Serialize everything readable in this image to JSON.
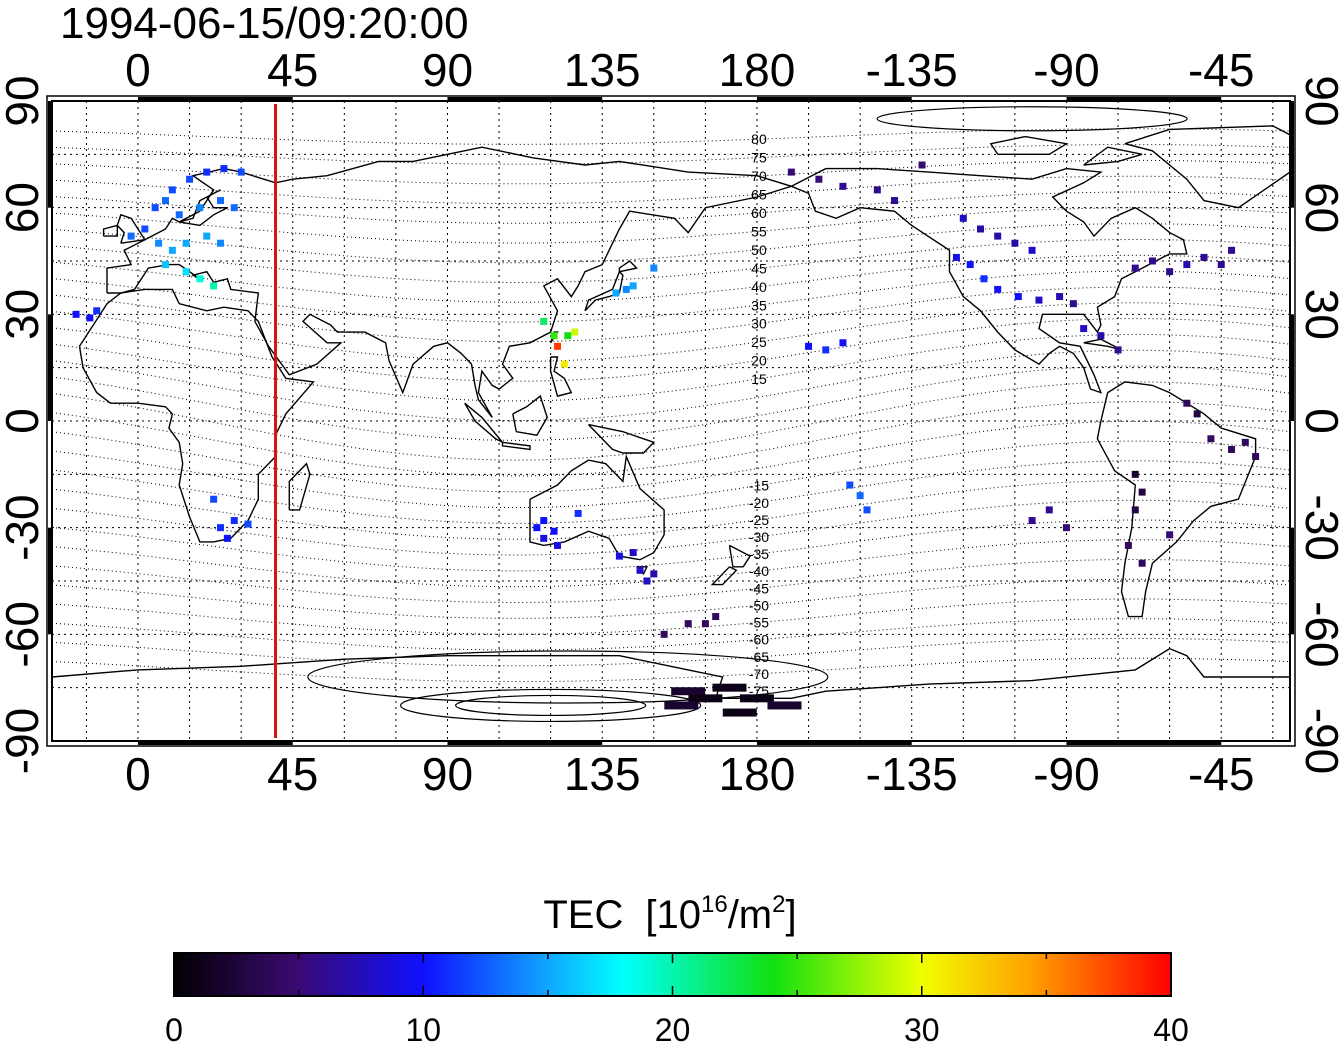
{
  "title": "1994-06-15/09:20:00",
  "top_lon_labels": [
    "0",
    "45",
    "90",
    "135",
    "180",
    "-135",
    "-90",
    "-45"
  ],
  "bottom_lon_labels": [
    "0",
    "45",
    "90",
    "135",
    "180",
    "-135",
    "-90",
    "-45"
  ],
  "left_lat_labels": [
    "90",
    "60",
    "30",
    "0",
    "-30",
    "-60",
    "-90"
  ],
  "right_lat_labels": [
    "90",
    "60",
    "30",
    "0",
    "-30",
    "-60",
    "-90"
  ],
  "contour_labels_north": [
    "80",
    "75",
    "70",
    "65",
    "60",
    "55",
    "50",
    "45",
    "40",
    "35",
    "30",
    "25",
    "20",
    "15"
  ],
  "contour_labels_south": [
    "-15",
    "-20",
    "-25",
    "-30",
    "-35",
    "-40",
    "-45",
    "-50",
    "-55",
    "-60",
    "-65",
    "-70",
    "-75"
  ],
  "colorbar": {
    "title": "TEC",
    "unit_base": "[10",
    "unit_exp": "16",
    "unit_mid": "/m",
    "unit_exp2": "2",
    "unit_end": "]",
    "tick_labels": [
      "0",
      "10",
      "20",
      "30",
      "40"
    ],
    "range": [
      0,
      40
    ]
  },
  "terminator_color": "#dd1010",
  "chart_data": {
    "type": "scatter",
    "title": "1994-06-15/09:20:00",
    "xlabel": "",
    "ylabel": "",
    "xlim": [
      -25,
      335
    ],
    "ylim": [
      -90,
      90
    ],
    "grid": true,
    "color_scale": "TEC",
    "color_range": [
      0,
      40
    ],
    "terminator_longitude": 40,
    "points": [
      [
        -18,
        30,
        10
      ],
      [
        -14,
        29,
        10
      ],
      [
        -12,
        31,
        11
      ],
      [
        -2,
        52,
        13
      ],
      [
        2,
        54,
        12
      ],
      [
        5,
        60,
        12
      ],
      [
        8,
        62,
        13
      ],
      [
        10,
        65,
        12
      ],
      [
        15,
        68,
        12
      ],
      [
        20,
        70,
        11
      ],
      [
        25,
        71,
        11
      ],
      [
        30,
        70,
        12
      ],
      [
        12,
        58,
        13
      ],
      [
        18,
        60,
        14
      ],
      [
        24,
        62,
        13
      ],
      [
        28,
        60,
        13
      ],
      [
        6,
        50,
        14
      ],
      [
        10,
        48,
        15
      ],
      [
        14,
        50,
        15
      ],
      [
        20,
        52,
        15
      ],
      [
        24,
        50,
        14
      ],
      [
        8,
        44,
        16
      ],
      [
        14,
        42,
        17
      ],
      [
        18,
        40,
        19
      ],
      [
        22,
        38,
        20
      ],
      [
        24,
        -30,
        11
      ],
      [
        26,
        -33,
        10
      ],
      [
        28,
        -28,
        11
      ],
      [
        32,
        -29,
        12
      ],
      [
        22,
        -22,
        12
      ],
      [
        116,
        -30,
        10
      ],
      [
        118,
        -33,
        9
      ],
      [
        121,
        -31,
        10
      ],
      [
        118,
        -28,
        10
      ],
      [
        128,
        -26,
        11
      ],
      [
        122,
        -35,
        9
      ],
      [
        140,
        -38,
        9
      ],
      [
        144,
        -37,
        8
      ],
      [
        146,
        -42,
        8
      ],
      [
        148,
        -45,
        8
      ],
      [
        150,
        -43,
        7
      ],
      [
        160,
        -57,
        4
      ],
      [
        165,
        -57,
        4
      ],
      [
        168,
        -55,
        4
      ],
      [
        153,
        -60,
        4
      ],
      [
        118,
        28,
        22
      ],
      [
        121,
        24,
        25
      ],
      [
        122,
        21,
        38
      ],
      [
        125,
        24,
        24
      ],
      [
        127,
        25,
        29
      ],
      [
        124,
        16,
        31
      ],
      [
        139,
        36,
        15
      ],
      [
        142,
        37,
        14
      ],
      [
        144,
        38,
        15
      ],
      [
        150,
        43,
        14
      ],
      [
        195,
        21,
        10
      ],
      [
        200,
        20,
        11
      ],
      [
        205,
        22,
        10
      ],
      [
        207,
        -18,
        12
      ],
      [
        210,
        -21,
        13
      ],
      [
        212,
        -25,
        12
      ],
      [
        190,
        70,
        5
      ],
      [
        198,
        68,
        5
      ],
      [
        205,
        66,
        6
      ],
      [
        215,
        65,
        6
      ],
      [
        220,
        62,
        6
      ],
      [
        228,
        72,
        5
      ],
      [
        240,
        57,
        8
      ],
      [
        245,
        54,
        7
      ],
      [
        250,
        52,
        7
      ],
      [
        255,
        50,
        7
      ],
      [
        260,
        48,
        8
      ],
      [
        238,
        46,
        9
      ],
      [
        242,
        44,
        10
      ],
      [
        246,
        40,
        11
      ],
      [
        250,
        37,
        10
      ],
      [
        256,
        35,
        10
      ],
      [
        262,
        34,
        8
      ],
      [
        268,
        35,
        7
      ],
      [
        272,
        33,
        6
      ],
      [
        275,
        26,
        8
      ],
      [
        280,
        24,
        7
      ],
      [
        285,
        20,
        6
      ],
      [
        290,
        43,
        6
      ],
      [
        295,
        45,
        6
      ],
      [
        300,
        42,
        6
      ],
      [
        305,
        44,
        7
      ],
      [
        310,
        46,
        6
      ],
      [
        315,
        44,
        6
      ],
      [
        318,
        48,
        6
      ],
      [
        260,
        -28,
        6
      ],
      [
        265,
        -25,
        6
      ],
      [
        270,
        -30,
        5
      ],
      [
        290,
        -15,
        2
      ],
      [
        292,
        -20,
        3
      ],
      [
        290,
        -25,
        3
      ],
      [
        288,
        -35,
        4
      ],
      [
        292,
        -40,
        4
      ],
      [
        300,
        -32,
        5
      ],
      [
        305,
        5,
        4
      ],
      [
        308,
        2,
        3
      ],
      [
        312,
        -5,
        4
      ],
      [
        318,
        -8,
        4
      ],
      [
        322,
        -6,
        4
      ],
      [
        325,
        -10,
        4
      ],
      [
        160,
        -76,
        2
      ],
      [
        165,
        -78,
        1
      ],
      [
        172,
        -75,
        1
      ],
      [
        180,
        -78,
        1
      ],
      [
        188,
        -80,
        2
      ],
      [
        175,
        -82,
        1
      ],
      [
        158,
        -80,
        2
      ]
    ]
  }
}
